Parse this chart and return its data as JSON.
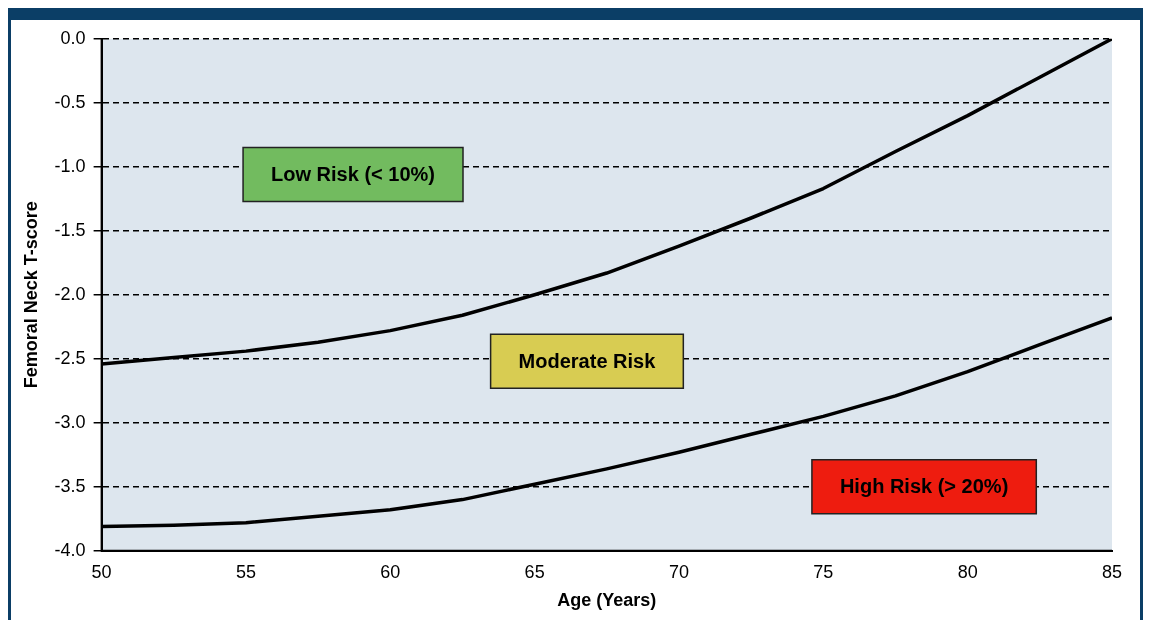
{
  "chart_data": {
    "type": "line",
    "xlabel": "Age (Years)",
    "ylabel": "Femoral Neck T-score",
    "xlim": [
      50,
      85
    ],
    "xticks": [
      50,
      55,
      60,
      65,
      70,
      75,
      80,
      85
    ],
    "ylim": [
      -4,
      0
    ],
    "yticks": [
      {
        "value": 0,
        "label": "0.0"
      },
      {
        "value": -0.5,
        "label": "-0.5"
      },
      {
        "value": -1,
        "label": "-1.0"
      },
      {
        "value": -1.5,
        "label": "-1.5"
      },
      {
        "value": -2,
        "label": "-2.0"
      },
      {
        "value": -2.5,
        "label": "-2.5"
      },
      {
        "value": -3,
        "label": "-3.0"
      },
      {
        "value": -3.5,
        "label": "-3.5"
      },
      {
        "value": -4,
        "label": "-4.0"
      }
    ],
    "grid": "y",
    "legend": false,
    "marker": "none",
    "line_style": "solid",
    "series": [
      {
        "color": "#000000",
        "x": [
          50,
          52.5,
          55,
          57.5,
          60,
          62.5,
          65,
          67.5,
          70,
          72.5,
          75,
          77.5,
          80,
          82.5,
          85
        ],
        "values": [
          -2.54,
          -2.49,
          -2.44,
          -2.37,
          -2.28,
          -2.16,
          -2.0,
          -1.83,
          -1.62,
          -1.4,
          -1.17,
          -0.88,
          -0.6,
          -0.3,
          0.0
        ]
      },
      {
        "color": "#000000",
        "x": [
          50,
          52.5,
          55,
          57.5,
          60,
          62.5,
          65,
          67.5,
          70,
          72.5,
          75,
          77.5,
          80,
          82.5,
          85
        ],
        "values": [
          -3.81,
          -3.8,
          -3.78,
          -3.73,
          -3.68,
          -3.6,
          -3.48,
          -3.36,
          -3.23,
          -3.09,
          -2.95,
          -2.79,
          -2.6,
          -2.39,
          -2.18
        ]
      }
    ],
    "annotations": [
      "Low Risk (< 10%)",
      "Moderate Risk",
      "High Risk (> 20%)"
    ]
  }
}
